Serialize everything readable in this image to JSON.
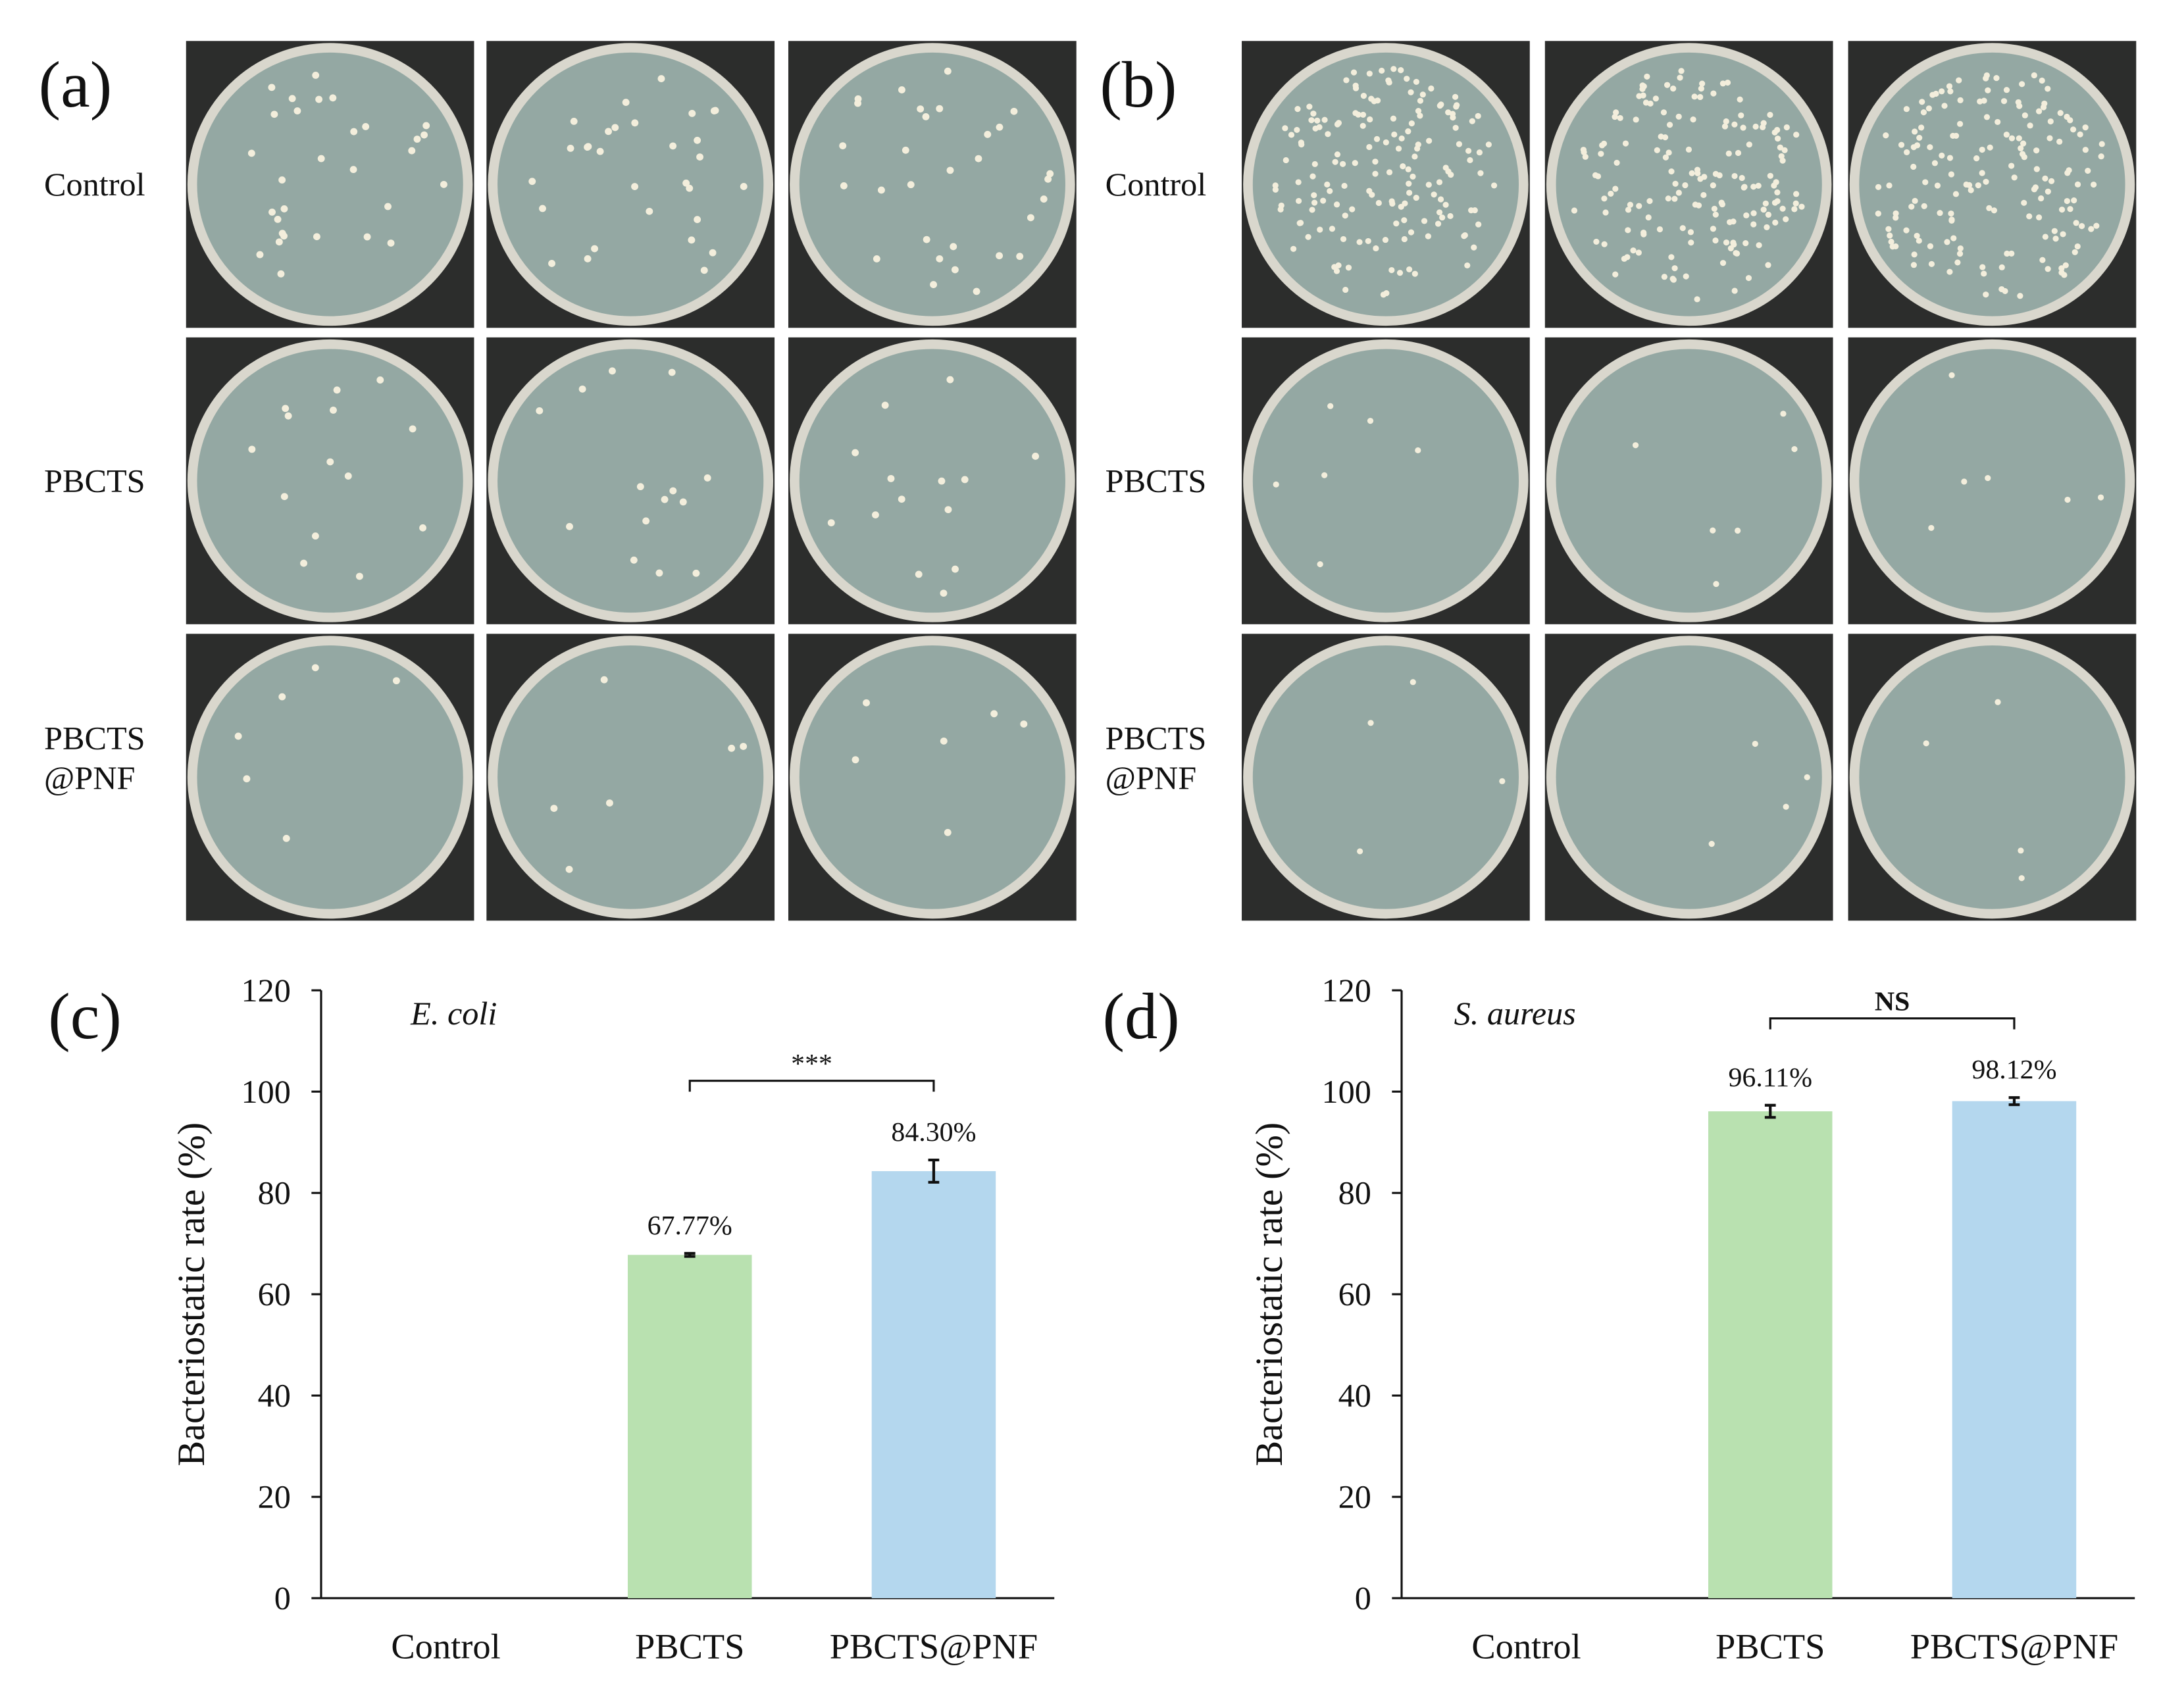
{
  "photo_panels": [
    {
      "label": "(a)",
      "rows": [
        [
          "Control"
        ],
        [
          "PBCTS"
        ],
        [
          "PBCTS",
          "@PNF"
        ]
      ]
    },
    {
      "label": "(b)",
      "rows": [
        [
          "Control"
        ],
        [
          "PBCTS"
        ],
        [
          "PBCTS",
          "@PNF"
        ]
      ]
    }
  ],
  "chart_data": [
    {
      "type": "bar",
      "panel_label": "(c)",
      "annotation": "E. coli",
      "y_label": "Bacteriostatic rate (%)",
      "categories": [
        "Control",
        "PBCTS",
        "PBCTS@PNF"
      ],
      "values": [
        0,
        67.77,
        84.3
      ],
      "value_labels": [
        null,
        "67.77%",
        "84.30%"
      ],
      "errors": [
        null,
        0.3,
        2.2
      ],
      "colors": [
        null,
        "#b9e1b0",
        "#b4d7ee"
      ],
      "ylim": [
        0,
        120
      ],
      "yticks": [
        0,
        20,
        40,
        60,
        80,
        100,
        120
      ],
      "significance": {
        "text": "***",
        "between": [
          "PBCTS",
          "PBCTS@PNF"
        ]
      }
    },
    {
      "type": "bar",
      "panel_label": "(d)",
      "annotation": "S. aureus",
      "y_label": "Bacteriostatic rate (%)",
      "categories": [
        "Control",
        "PBCTS",
        "PBCTS@PNF"
      ],
      "values": [
        0,
        96.11,
        98.12
      ],
      "value_labels": [
        null,
        "96.11%",
        "98.12%"
      ],
      "errors": [
        null,
        1.2,
        0.7
      ],
      "colors": [
        null,
        "#b9e1b0",
        "#b4d7ee"
      ],
      "ylim": [
        0,
        120
      ],
      "yticks": [
        0,
        20,
        40,
        60,
        80,
        100,
        120
      ],
      "significance": {
        "text": "NS",
        "between": [
          "PBCTS",
          "PBCTS@PNF"
        ]
      }
    }
  ]
}
